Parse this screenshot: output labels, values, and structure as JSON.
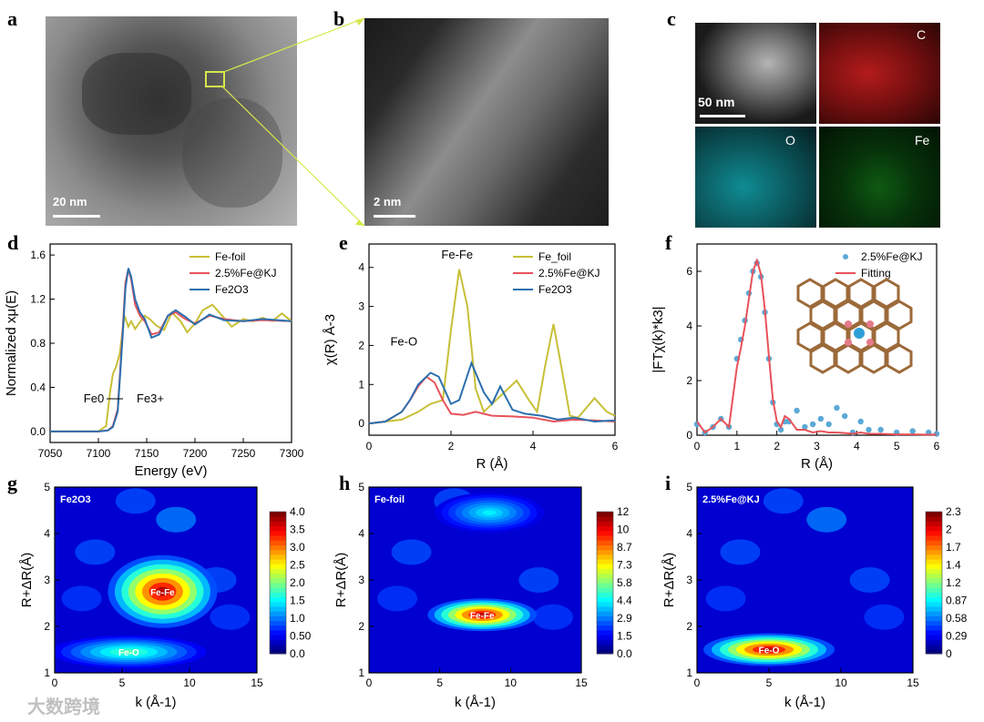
{
  "panels": {
    "a": {
      "label": "a",
      "scale": "20 nm"
    },
    "b": {
      "label": "b",
      "scale": "2 nm"
    },
    "c": {
      "label": "c",
      "scale": "50 nm",
      "maps": [
        "C",
        "O",
        "Fe"
      ]
    },
    "d": {
      "label": "d"
    },
    "e": {
      "label": "e"
    },
    "f": {
      "label": "f"
    },
    "g": {
      "label": "g"
    },
    "h": {
      "label": "h"
    },
    "i": {
      "label": "i"
    }
  },
  "watermark": "大数跨境",
  "chart_data": [
    {
      "id": "d",
      "type": "line",
      "xlabel": "Energy (eV)",
      "ylabel": "Normalized xμ(E)",
      "xlim": [
        7050,
        7300
      ],
      "ylim": [
        -0.1,
        1.7
      ],
      "xticks": [
        "7050",
        "7100",
        "7150",
        "7200",
        "7250",
        "7300"
      ],
      "yticks": [
        "0.0",
        "0.4",
        "0.8",
        "1.2",
        "1.6"
      ],
      "annotations": [
        "Fe0",
        "Fe3+"
      ],
      "series": [
        {
          "name": "Fe-foil",
          "color": "#c8bf38",
          "x": [
            7050,
            7100,
            7108,
            7112,
            7115,
            7118,
            7122,
            7127,
            7131,
            7134,
            7138,
            7142,
            7148,
            7153,
            7160,
            7168,
            7176,
            7185,
            7192,
            7200,
            7208,
            7218,
            7228,
            7238,
            7250,
            7260,
            7270,
            7280,
            7290,
            7300
          ],
          "y": [
            0,
            0,
            0.05,
            0.35,
            0.52,
            0.58,
            0.7,
            1.05,
            0.95,
            1.0,
            0.93,
            0.98,
            1.05,
            1.02,
            0.96,
            0.92,
            1.08,
            1.0,
            0.9,
            0.98,
            1.1,
            1.15,
            1.05,
            0.95,
            1.02,
            1.0,
            1.03,
            1.0,
            1.07,
            1.0
          ]
        },
        {
          "name": "2.5%Fe@KJ",
          "color": "#e8525a",
          "x": [
            7050,
            7100,
            7110,
            7115,
            7120,
            7125,
            7128,
            7131,
            7134,
            7138,
            7143,
            7148,
            7155,
            7163,
            7172,
            7180,
            7190,
            7200,
            7215,
            7230,
            7250,
            7270,
            7300
          ],
          "y": [
            0,
            0,
            0.01,
            0.05,
            0.2,
            0.9,
            1.35,
            1.47,
            1.38,
            1.15,
            1.05,
            1.0,
            0.88,
            0.9,
            1.05,
            1.08,
            1.02,
            0.98,
            1.05,
            1.02,
            1.0,
            1.01,
            1.0
          ]
        },
        {
          "name": "Fe2O3",
          "color": "#2b6fae",
          "x": [
            7050,
            7100,
            7110,
            7115,
            7120,
            7125,
            7128,
            7131,
            7134,
            7138,
            7143,
            7148,
            7155,
            7163,
            7172,
            7180,
            7190,
            7200,
            7215,
            7230,
            7250,
            7270,
            7300
          ],
          "y": [
            0,
            0,
            0.01,
            0.04,
            0.18,
            0.85,
            1.3,
            1.48,
            1.4,
            1.2,
            1.08,
            1.02,
            0.85,
            0.88,
            1.05,
            1.1,
            1.04,
            0.97,
            1.06,
            1.01,
            1.0,
            1.02,
            1.0
          ]
        }
      ]
    },
    {
      "id": "e",
      "type": "line",
      "xlabel": "R (Å)",
      "ylabel": "χ(R) Å-3",
      "xlim": [
        0,
        6
      ],
      "ylim": [
        -0.3,
        4.6
      ],
      "xticks": [
        "0",
        "2",
        "4",
        "6"
      ],
      "yticks": [
        "0",
        "1",
        "2",
        "3",
        "4"
      ],
      "annotations": [
        "Fe-Fe",
        "Fe-O"
      ],
      "series": [
        {
          "name": "Fe_foil",
          "color": "#c8bf38",
          "x": [
            0,
            0.4,
            0.8,
            1.2,
            1.5,
            1.8,
            2.0,
            2.2,
            2.4,
            2.6,
            2.8,
            3.0,
            3.3,
            3.6,
            3.9,
            4.1,
            4.3,
            4.5,
            4.7,
            4.9,
            5.1,
            5.3,
            5.5,
            5.8,
            6.0
          ],
          "y": [
            0,
            0.05,
            0.1,
            0.3,
            0.5,
            0.6,
            2.4,
            3.95,
            3.0,
            0.9,
            0.3,
            0.5,
            0.8,
            1.1,
            0.6,
            0.3,
            1.5,
            2.55,
            1.4,
            0.2,
            0.15,
            0.4,
            0.65,
            0.3,
            0.2
          ]
        },
        {
          "name": "2.5%Fe@KJ",
          "color": "#e8525a",
          "x": [
            0,
            0.4,
            0.8,
            1.0,
            1.2,
            1.4,
            1.6,
            1.8,
            2.0,
            2.3,
            2.6,
            3.0,
            3.5,
            4.0,
            4.5,
            5.0,
            5.5,
            6.0
          ],
          "y": [
            0,
            0.05,
            0.3,
            0.6,
            0.95,
            1.2,
            1.05,
            0.6,
            0.25,
            0.22,
            0.3,
            0.2,
            0.18,
            0.15,
            0.05,
            0.1,
            0.08,
            0.05
          ]
        },
        {
          "name": "Fe2O3",
          "color": "#2b6fae",
          "x": [
            0,
            0.4,
            0.8,
            1.0,
            1.2,
            1.5,
            1.7,
            2.0,
            2.2,
            2.5,
            2.8,
            3.0,
            3.2,
            3.5,
            3.8,
            4.2,
            4.6,
            5.0,
            5.5,
            6.0
          ],
          "y": [
            0,
            0.05,
            0.3,
            0.6,
            1.0,
            1.3,
            1.2,
            0.5,
            0.6,
            1.55,
            0.8,
            0.5,
            0.95,
            0.35,
            0.25,
            0.2,
            0.1,
            0.15,
            0.05,
            0.08
          ]
        }
      ]
    },
    {
      "id": "f",
      "type": "scatter",
      "xlabel": "R (Å)",
      "ylabel": "|FTχ(k)*k3|",
      "xlim": [
        0,
        6
      ],
      "ylim": [
        0,
        7
      ],
      "xticks": [
        "0",
        "1",
        "2",
        "3",
        "4",
        "5",
        "6"
      ],
      "yticks": [
        "0",
        "2",
        "4",
        "6"
      ],
      "series": [
        {
          "name": "2.5%Fe@KJ",
          "color": "#5aa9d6",
          "x": [
            0,
            0.2,
            0.4,
            0.6,
            0.8,
            1.0,
            1.1,
            1.2,
            1.3,
            1.4,
            1.5,
            1.6,
            1.7,
            1.8,
            1.9,
            2.0,
            2.1,
            2.2,
            2.3,
            2.5,
            2.7,
            2.9,
            3.1,
            3.3,
            3.5,
            3.7,
            3.9,
            4.1,
            4.3,
            4.6,
            5.0,
            5.4,
            5.8,
            6.0
          ],
          "y": [
            0.4,
            0.1,
            0.3,
            0.6,
            0.3,
            2.8,
            3.5,
            4.2,
            5.2,
            6.0,
            6.3,
            5.8,
            4.5,
            2.8,
            1.2,
            0.4,
            0.2,
            0.5,
            0.5,
            0.9,
            0.3,
            0.4,
            0.6,
            0.4,
            1.0,
            0.7,
            0.1,
            0.5,
            0.2,
            0.2,
            0.1,
            0.15,
            0.1,
            0.05
          ]
        },
        {
          "name": "Fitting",
          "color": "#e8525a",
          "x": [
            0,
            0.2,
            0.4,
            0.6,
            0.8,
            1.0,
            1.1,
            1.2,
            1.3,
            1.4,
            1.5,
            1.6,
            1.7,
            1.8,
            1.9,
            2.0,
            2.1,
            2.2,
            2.3,
            2.5,
            2.7,
            2.9,
            3.1,
            3.3,
            3.5,
            3.7,
            3.9,
            4.1,
            4.3,
            4.6,
            5.0,
            5.4,
            5.8,
            6.0
          ],
          "y": [
            0.5,
            0.1,
            0.3,
            0.6,
            0.3,
            2.5,
            3.2,
            4.0,
            5.0,
            6.0,
            6.4,
            5.9,
            4.6,
            2.9,
            1.3,
            0.5,
            0.3,
            0.7,
            0.6,
            0.2,
            0.2,
            0.1,
            0.15,
            0.1,
            0.1,
            0.08,
            0.05,
            0.1,
            0.05,
            0.05,
            0.03,
            0.03,
            0.02,
            0.02
          ]
        }
      ]
    },
    {
      "id": "g",
      "type": "heatmap",
      "inset": "Fe2O3",
      "xlabel": "k (Å-1)",
      "ylabel": "R+ΔR(Å)",
      "xlim": [
        0,
        15
      ],
      "ylim": [
        1,
        5
      ],
      "xticks": [
        "0",
        "5",
        "10",
        "15"
      ],
      "yticks": [
        "1",
        "2",
        "3",
        "4",
        "5"
      ],
      "colorbar": [
        "0.0",
        "0.50",
        "1.0",
        "1.5",
        "2.0",
        "2.5",
        "3.0",
        "3.5",
        "4.0"
      ],
      "peaks": [
        {
          "label": "Fe-Fe",
          "k": 8.0,
          "r": 2.75
        },
        {
          "label": "Fe-O",
          "k": 5.5,
          "r": 1.45
        }
      ]
    },
    {
      "id": "h",
      "type": "heatmap",
      "inset": "Fe-foil",
      "xlabel": "k (Å-1)",
      "ylabel": "R+ΔR(Å)",
      "xlim": [
        0,
        15
      ],
      "ylim": [
        1,
        5
      ],
      "xticks": [
        "0",
        "5",
        "10",
        "15"
      ],
      "yticks": [
        "1",
        "2",
        "3",
        "4",
        "5"
      ],
      "colorbar": [
        "0.0",
        "1.5",
        "2.9",
        "4.4",
        "5.8",
        "7.3",
        "8.7",
        "10",
        "12"
      ],
      "peaks": [
        {
          "label": "Fe-Fe",
          "k": 8.0,
          "r": 2.25
        },
        {
          "label": "",
          "k": 8.5,
          "r": 4.45
        }
      ]
    },
    {
      "id": "i",
      "type": "heatmap",
      "inset": "2.5%Fe@KJ",
      "xlabel": "k (Å-1)",
      "ylabel": "R+ΔR(Å)",
      "xlim": [
        0,
        15
      ],
      "ylim": [
        1,
        5
      ],
      "xticks": [
        "0",
        "5",
        "10",
        "15"
      ],
      "yticks": [
        "1",
        "2",
        "3",
        "4",
        "5"
      ],
      "colorbar": [
        "0",
        "0.29",
        "0.58",
        "0.87",
        "1.2",
        "1.4",
        "1.7",
        "2",
        "2.3"
      ],
      "peaks": [
        {
          "label": "Fe-O",
          "k": 5.0,
          "r": 1.5
        }
      ]
    }
  ]
}
